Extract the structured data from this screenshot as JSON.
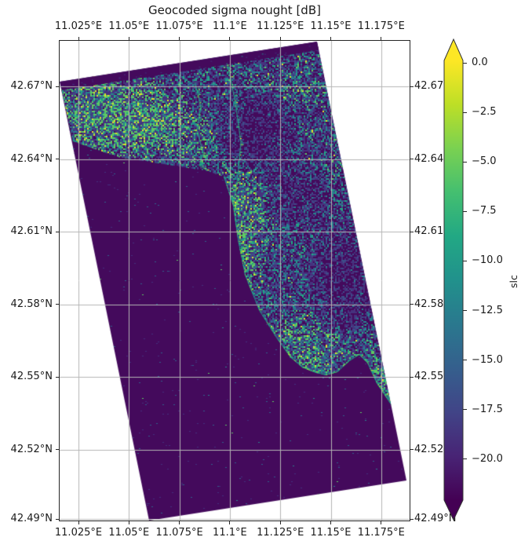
{
  "title": "Geocoded sigma nought [dB]",
  "axes": {
    "x_tick_labels": [
      "11.025°E",
      "11.05°E",
      "11.075°E",
      "11.1°E",
      "11.125°E",
      "11.15°E",
      "11.175°E"
    ],
    "y_tick_labels_left": [
      "42.67°N",
      "42.64°N",
      "42.61°N",
      "42.58°N",
      "42.55°N",
      "42.52°N",
      "42.49°N"
    ],
    "y_tick_labels_right": [
      "42.67",
      "42.64",
      "42.61",
      "42.58",
      "42.55",
      "42.52",
      "42.49°N"
    ]
  },
  "colorbar": {
    "label": "slc",
    "tick_labels": [
      "0.0",
      "−2.5",
      "−5.0",
      "−7.5",
      "−10.0",
      "−12.5",
      "−15.0",
      "−17.5",
      "−20.0"
    ],
    "extend": "both",
    "colormap": "viridis"
  },
  "chart_data": {
    "type": "heatmap",
    "title": "Geocoded sigma nought [dB]",
    "colormap": "viridis",
    "value_label": "slc",
    "value_units": "dB",
    "x_axis": {
      "quantity": "longitude",
      "ticks_deg_E": [
        11.025,
        11.05,
        11.075,
        11.1,
        11.125,
        11.15,
        11.175
      ],
      "shown_on": [
        "top",
        "bottom"
      ]
    },
    "y_axis": {
      "quantity": "latitude",
      "ticks_deg_N": [
        42.67,
        42.64,
        42.61,
        42.58,
        42.55,
        42.52,
        42.49
      ],
      "shown_on": [
        "left",
        "right"
      ]
    },
    "colorbar_ticks_dB": [
      0.0,
      -2.5,
      -5.0,
      -7.5,
      -10.0,
      -12.5,
      -15.0,
      -17.5,
      -20.0
    ],
    "value_range_displayed_dB": [
      -22.1,
      0.0
    ],
    "grid": true,
    "scene": "rotated rectangular SAR footprint: dark low-backscatter sea in lower-left, speckled higher-backscatter land in upper-right, bright coastline between"
  },
  "colors": {
    "background": "#ffffff",
    "text": "#1a1a1a",
    "grid": "#b5b5b5",
    "spine": "#262626",
    "sea": "#440a5c",
    "land_palette": [
      "#440a5c",
      "#46327e",
      "#3d4e8a",
      "#26838e",
      "#22a884",
      "#5ec962",
      "#dde22a"
    ],
    "coast_highlight": [
      "#1f9e89",
      "#22a884",
      "#5ec962",
      "#aadc32",
      "#fde725"
    ],
    "viridis_stops": [
      "#fde725",
      "#bddf26",
      "#7ad151",
      "#44bf70",
      "#22a884",
      "#21918c",
      "#2a788e",
      "#355f8d",
      "#414487",
      "#482475",
      "#440154"
    ]
  }
}
